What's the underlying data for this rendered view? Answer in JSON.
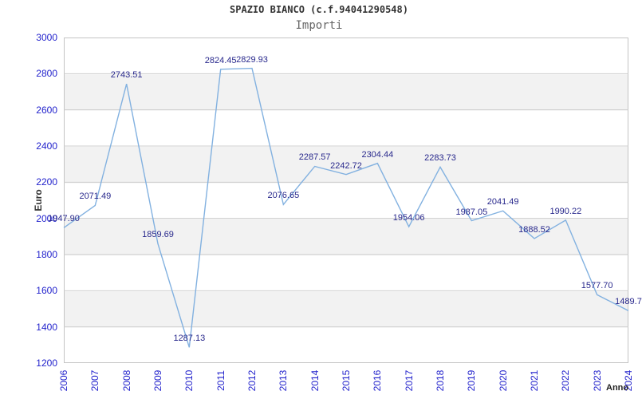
{
  "chart_data": {
    "type": "line",
    "title": "SPAZIO BIANCO (c.f.94041290548)",
    "subtitle": "Importi",
    "xlabel": "Anno",
    "ylabel": "Euro",
    "ylim": [
      1200,
      3000
    ],
    "ytick_step": 200,
    "grid": "horizontal-bands",
    "legend": "none",
    "x": [
      2006,
      2007,
      2008,
      2009,
      2010,
      2011,
      2012,
      2013,
      2014,
      2015,
      2016,
      2017,
      2018,
      2019,
      2020,
      2021,
      2022,
      2023,
      2024
    ],
    "values": [
      1947.9,
      2071.49,
      2743.51,
      1859.69,
      1287.13,
      2824.45,
      2829.93,
      2076.65,
      2287.57,
      2242.72,
      2304.44,
      1954.06,
      2283.73,
      1987.05,
      2041.49,
      1888.52,
      1990.22,
      1577.7,
      1489.7
    ],
    "point_labels": [
      "1947.90",
      "2071.49",
      "2743.51",
      "1859.69",
      "1287.13",
      "2824.45",
      "2829.93",
      "2076.65",
      "2287.57",
      "2242.72",
      "2304.44",
      "1954.06",
      "2283.73",
      "1987.05",
      "2041.49",
      "1888.52",
      "1990.22",
      "1577.70",
      "1489.7"
    ],
    "colors": {
      "line": "#82b1e0",
      "tick_label": "#2222cc",
      "point_label": "#28288c",
      "band": "#f2f2f2",
      "gridline": "#cccccc",
      "plot_border": "#c4c4c4",
      "title": "#333333",
      "subtitle": "#666666",
      "axis_title": "#333333"
    }
  }
}
